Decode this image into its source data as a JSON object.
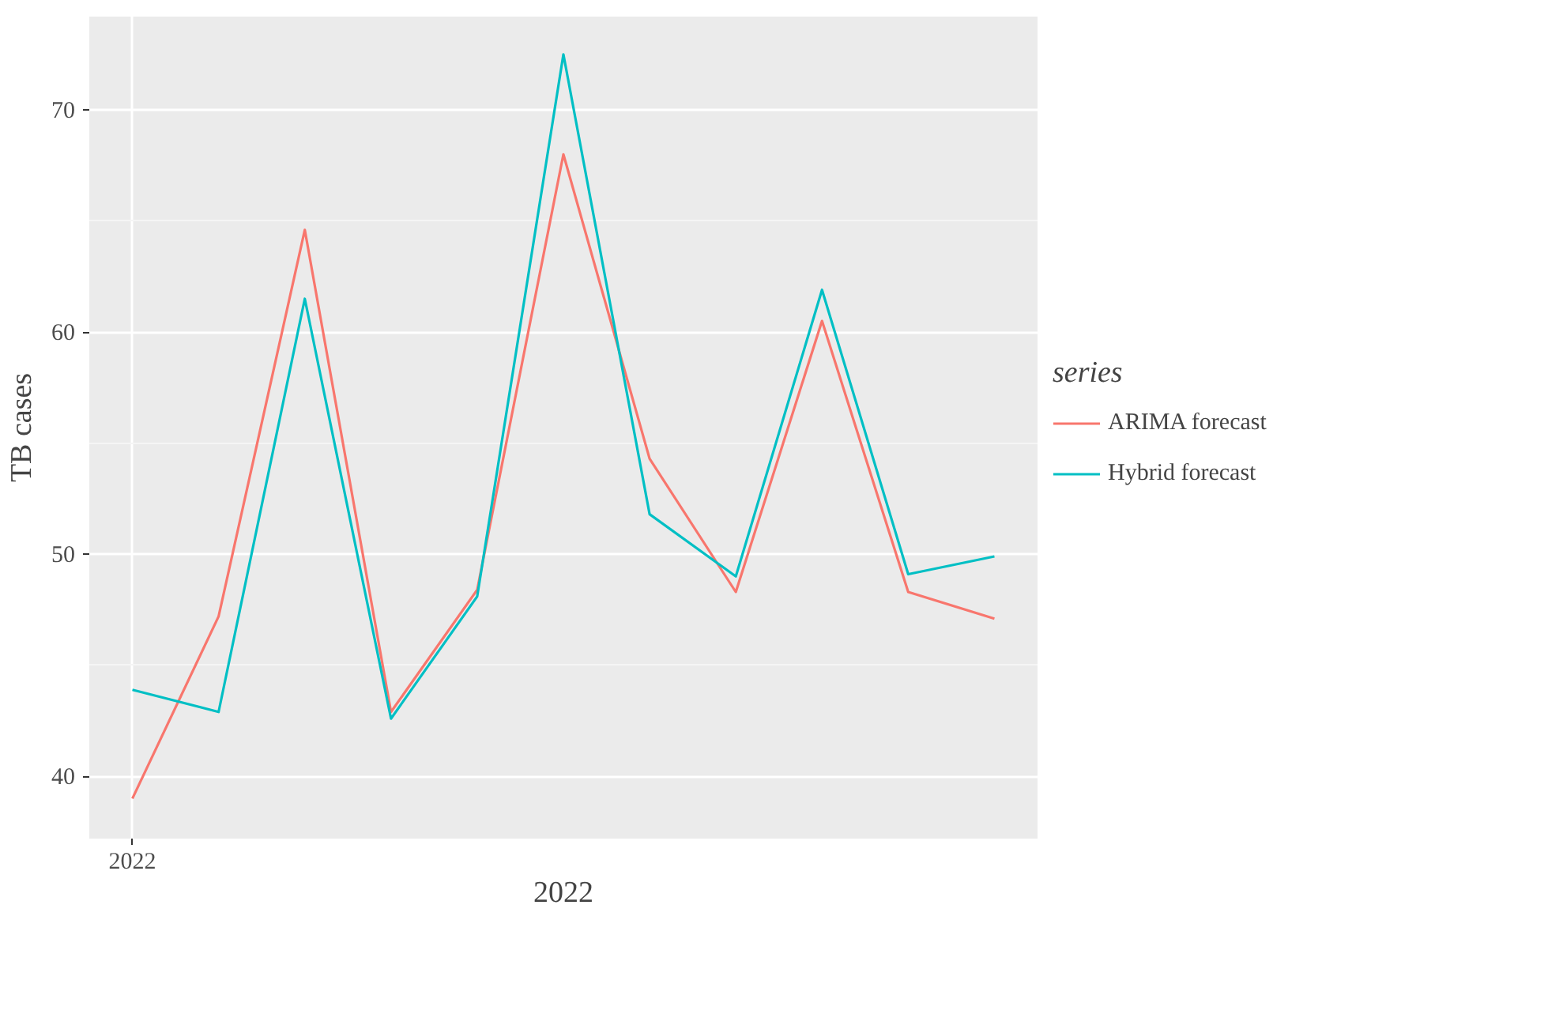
{
  "chart_data": {
    "type": "line",
    "ylabel": "TB cases",
    "xlabel": "2022",
    "legend_title": "series",
    "categories": [
      "2022",
      null,
      null,
      null,
      null,
      null,
      null,
      null,
      null,
      null,
      null
    ],
    "series": [
      {
        "name": "ARIMA forecast",
        "color": "#f8766d",
        "values": [
          39.0,
          47.2,
          64.6,
          42.9,
          48.4,
          68.0,
          54.3,
          48.3,
          60.5,
          48.3,
          47.1
        ]
      },
      {
        "name": "Hybrid forecast",
        "color": "#00bfc4",
        "values": [
          43.9,
          42.9,
          61.5,
          42.6,
          48.1,
          72.5,
          51.8,
          49.0,
          61.9,
          49.1,
          49.9
        ]
      }
    ],
    "ylim": [
      37.2,
      74.2
    ],
    "yticks": [
      40,
      50,
      60,
      70
    ],
    "grid": true,
    "legend": "right",
    "line_style": "solid"
  }
}
